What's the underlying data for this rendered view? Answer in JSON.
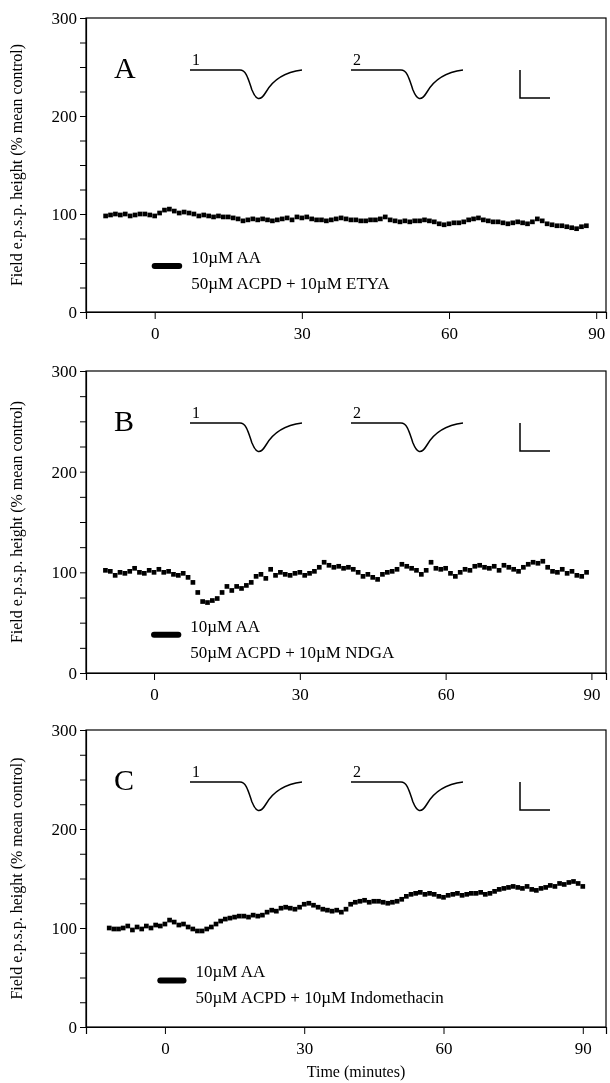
{
  "chart_data": [
    {
      "type": "scatter",
      "title": "A",
      "ylabel": "Field e.p.s.p. height (% mean control)",
      "xlim": [
        -14,
        92
      ],
      "ylim": [
        0,
        300
      ],
      "xticks": [
        0,
        30,
        60,
        90
      ],
      "yticks": [
        0,
        {
          "value": 25,
          "label": null
        },
        {
          "value": 50,
          "label": null
        },
        {
          "value": 75,
          "label": null
        },
        100,
        {
          "value": 125,
          "label": null
        },
        {
          "value": 150,
          "label": null
        },
        {
          "value": 175,
          "label": null
        },
        200,
        {
          "value": 225,
          "label": null
        },
        {
          "value": 250,
          "label": null
        },
        {
          "value": 275,
          "label": null
        },
        300
      ],
      "marker": "square",
      "grid": false,
      "annotations": [
        "1",
        "2",
        "10µM AA",
        "50µM ACPD + 10µM ETYA"
      ],
      "series": [
        {
          "color": "#000000",
          "x": [
            -10,
            -9,
            -8,
            -7,
            -6,
            -5,
            -4,
            -3,
            -2,
            -1,
            0,
            1,
            2,
            3,
            4,
            5,
            6,
            7,
            8,
            9,
            10,
            11,
            12,
            13,
            14,
            15,
            16,
            17,
            18,
            19,
            20,
            21,
            22,
            23,
            24,
            25,
            26,
            27,
            28,
            29,
            30,
            31,
            32,
            33,
            34,
            35,
            36,
            37,
            38,
            39,
            40,
            41,
            42,
            43,
            44,
            45,
            46,
            47,
            48,
            49,
            50,
            51,
            52,
            53,
            54,
            55,
            56,
            57,
            58,
            59,
            60,
            61,
            62,
            63,
            64,
            65,
            66,
            67,
            68,
            69,
            70,
            71,
            72,
            73,
            74,
            75,
            76,
            77,
            78,
            79,
            80,
            81,
            82,
            83,
            84,
            85,
            86,
            87,
            88
          ],
          "values": [
            98,
            99,
            100,
            99,
            100,
            98,
            99,
            100,
            100,
            99,
            98,
            101,
            104,
            105,
            103,
            101,
            102,
            101,
            100,
            98,
            99,
            98,
            97,
            98,
            97,
            97,
            96,
            95,
            93,
            94,
            95,
            94,
            95,
            94,
            93,
            94,
            95,
            96,
            94,
            97,
            96,
            97,
            95,
            94,
            94,
            93,
            94,
            95,
            96,
            95,
            94,
            94,
            93,
            93,
            94,
            94,
            95,
            97,
            94,
            93,
            92,
            93,
            92,
            93,
            93,
            94,
            93,
            92,
            90,
            89,
            90,
            91,
            91,
            92,
            94,
            95,
            96,
            94,
            93,
            92,
            92,
            91,
            90,
            91,
            92,
            91,
            90,
            92,
            95,
            93,
            90,
            89,
            88,
            88,
            87,
            86,
            85,
            87,
            88
          ]
        },
        {
          "type": "line",
          "marker": "none",
          "color": "#000000",
          "x": [
            0,
            5
          ],
          "values": [
            47,
            47
          ]
        }
      ]
    },
    {
      "type": "scatter",
      "title": "B",
      "ylabel": "Field e.p.s.p. height (% mean control)",
      "xlim": [
        -14,
        93
      ],
      "ylim": [
        0,
        300
      ],
      "xticks": [
        0,
        30,
        60,
        90
      ],
      "yticks": [
        0,
        {
          "value": 25,
          "label": null
        },
        {
          "value": 50,
          "label": null
        },
        {
          "value": 75,
          "label": null
        },
        100,
        {
          "value": 125,
          "label": null
        },
        {
          "value": 150,
          "label": null
        },
        {
          "value": 175,
          "label": null
        },
        200,
        {
          "value": 225,
          "label": null
        },
        {
          "value": 250,
          "label": null
        },
        {
          "value": 275,
          "label": null
        },
        300
      ],
      "marker": "square",
      "grid": false,
      "annotations": [
        "1",
        "2",
        "10µM AA",
        "50µM ACPD + 10µM NDGA"
      ],
      "series": [
        {
          "color": "#000000",
          "x": [
            -10,
            -9,
            -8,
            -7,
            -6,
            -5,
            -4,
            -3,
            -2,
            -1,
            0,
            1,
            2,
            3,
            4,
            5,
            6,
            7,
            8,
            9,
            10,
            11,
            12,
            13,
            14,
            15,
            16,
            17,
            18,
            19,
            20,
            21,
            22,
            23,
            24,
            25,
            26,
            27,
            28,
            29,
            30,
            31,
            32,
            33,
            34,
            35,
            36,
            37,
            38,
            39,
            40,
            41,
            42,
            43,
            44,
            45,
            46,
            47,
            48,
            49,
            50,
            51,
            52,
            53,
            54,
            55,
            56,
            57,
            58,
            59,
            60,
            61,
            62,
            63,
            64,
            65,
            66,
            67,
            68,
            69,
            70,
            71,
            72,
            73,
            74,
            75,
            76,
            77,
            78,
            79,
            80,
            81,
            82,
            83,
            84,
            85,
            86,
            87,
            88,
            89
          ],
          "values": [
            102,
            101,
            97,
            100,
            99,
            101,
            104,
            100,
            99,
            102,
            100,
            103,
            100,
            101,
            98,
            97,
            99,
            95,
            90,
            80,
            71,
            70,
            72,
            74,
            80,
            86,
            82,
            86,
            84,
            87,
            90,
            96,
            98,
            94,
            103,
            97,
            100,
            98,
            97,
            99,
            100,
            97,
            99,
            101,
            105,
            110,
            107,
            105,
            106,
            104,
            105,
            103,
            100,
            96,
            98,
            95,
            93,
            98,
            100,
            101,
            103,
            108,
            106,
            104,
            102,
            98,
            102,
            110,
            104,
            103,
            104,
            99,
            96,
            100,
            103,
            102,
            106,
            107,
            105,
            104,
            106,
            102,
            107,
            105,
            103,
            101,
            105,
            108,
            110,
            109,
            111,
            105,
            101,
            100,
            103,
            99,
            101,
            97,
            96,
            100
          ]
        },
        {
          "type": "line",
          "marker": "none",
          "color": "#000000",
          "x": [
            0,
            5
          ],
          "values": [
            38,
            38
          ]
        }
      ]
    },
    {
      "type": "scatter",
      "title": "C",
      "xlabel": "Time (minutes)",
      "ylabel": "Field e.p.s.p. height (% mean control)",
      "xlim": [
        -17,
        95
      ],
      "ylim": [
        0,
        300
      ],
      "xticks": [
        0,
        30,
        60,
        90
      ],
      "yticks": [
        0,
        {
          "value": 25,
          "label": null
        },
        {
          "value": 50,
          "label": null
        },
        {
          "value": 75,
          "label": null
        },
        100,
        {
          "value": 125,
          "label": null
        },
        {
          "value": 150,
          "label": null
        },
        {
          "value": 175,
          "label": null
        },
        200,
        {
          "value": 225,
          "label": null
        },
        {
          "value": 250,
          "label": null
        },
        {
          "value": 275,
          "label": null
        },
        300
      ],
      "marker": "square",
      "grid": false,
      "annotations": [
        "1",
        "2",
        "10µM AA",
        "50µM ACPD + 10µM Indomethacin"
      ],
      "series": [
        {
          "color": "#000000",
          "x": [
            -12,
            -11,
            -10,
            -9,
            -8,
            -7,
            -6,
            -5,
            -4,
            -3,
            -2,
            -1,
            0,
            1,
            2,
            3,
            4,
            5,
            6,
            7,
            8,
            9,
            10,
            11,
            12,
            13,
            14,
            15,
            16,
            17,
            18,
            19,
            20,
            21,
            22,
            23,
            24,
            25,
            26,
            27,
            28,
            29,
            30,
            31,
            32,
            33,
            34,
            35,
            36,
            37,
            38,
            39,
            40,
            41,
            42,
            43,
            44,
            45,
            46,
            47,
            48,
            49,
            50,
            51,
            52,
            53,
            54,
            55,
            56,
            57,
            58,
            59,
            60,
            61,
            62,
            63,
            64,
            65,
            66,
            67,
            68,
            69,
            70,
            71,
            72,
            73,
            74,
            75,
            76,
            77,
            78,
            79,
            80,
            81,
            82,
            83,
            84,
            85,
            86,
            87,
            88,
            89,
            90
          ],
          "values": [
            100,
            99,
            99,
            100,
            102,
            98,
            101,
            99,
            102,
            100,
            103,
            102,
            104,
            108,
            106,
            103,
            104,
            101,
            99,
            97,
            97,
            99,
            101,
            104,
            107,
            109,
            110,
            111,
            112,
            112,
            111,
            113,
            112,
            113,
            116,
            118,
            117,
            120,
            121,
            120,
            119,
            121,
            124,
            125,
            123,
            121,
            119,
            118,
            117,
            118,
            116,
            119,
            124,
            126,
            127,
            128,
            126,
            127,
            127,
            126,
            125,
            126,
            127,
            129,
            132,
            134,
            135,
            136,
            134,
            135,
            134,
            132,
            131,
            133,
            134,
            135,
            133,
            134,
            135,
            135,
            136,
            134,
            135,
            137,
            139,
            140,
            141,
            142,
            141,
            140,
            142,
            139,
            138,
            140,
            141,
            143,
            142,
            145,
            144,
            146,
            147,
            145,
            142
          ]
        },
        {
          "type": "line",
          "marker": "none",
          "color": "#000000",
          "x": [
            -1,
            4
          ],
          "values": [
            47,
            47
          ]
        }
      ]
    }
  ]
}
